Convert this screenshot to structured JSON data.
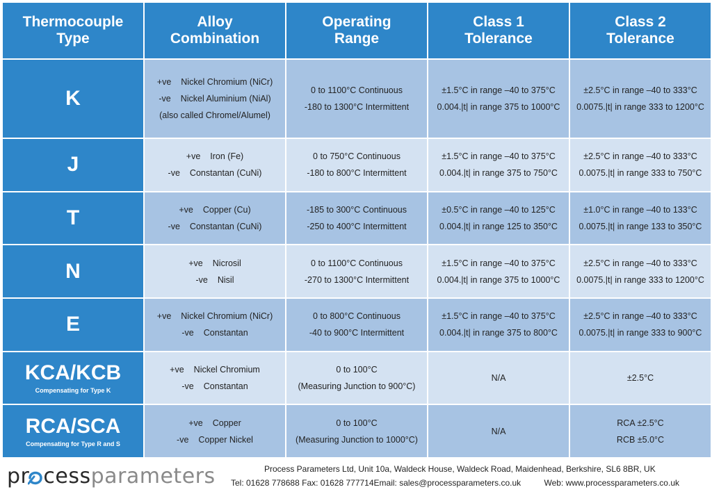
{
  "headers": [
    {
      "line1": "Thermocouple",
      "line2": "Type"
    },
    {
      "line1": "Alloy",
      "line2": "Combination"
    },
    {
      "line1": "Operating",
      "line2": "Range"
    },
    {
      "line1": "Class 1",
      "line2": "Tolerance"
    },
    {
      "line1": "Class 2",
      "line2": "Tolerance"
    }
  ],
  "rows": [
    {
      "type": "K",
      "sub": "",
      "alloy": [
        {
          "pol": "+ve",
          "name": "Nickel Chromium (NiCr)"
        },
        {
          "pol": "-ve",
          "name": "Nickel Aluminium (NiAl)"
        },
        {
          "pol": "",
          "name": "(also called Chromel/Alumel)"
        }
      ],
      "range": [
        "0 to 1100°C Continuous",
        "-180 to 1300°C Intermittent"
      ],
      "class1": [
        "±1.5°C in range –40 to 375°C",
        "0.004.|t| in range 375 to 1000°C"
      ],
      "class2": [
        "±2.5°C in range –40 to 333°C",
        "0.0075.|t| in range 333 to 1200°C"
      ]
    },
    {
      "type": "J",
      "sub": "",
      "alloy": [
        {
          "pol": "+ve",
          "name": "Iron (Fe)"
        },
        {
          "pol": "-ve",
          "name": "Constantan (CuNi)"
        },
        {
          "pol": "",
          "name": ""
        }
      ],
      "range": [
        "0 to 750°C Continuous",
        "-180 to 800°C Intermittent"
      ],
      "class1": [
        "±1.5°C in range –40 to 375°C",
        "0.004.|t| in range 375 to 750°C"
      ],
      "class2": [
        "±2.5°C in range –40 to 333°C",
        "0.0075.|t| in range 333 to 750°C"
      ]
    },
    {
      "type": "T",
      "sub": "",
      "alloy": [
        {
          "pol": "+ve",
          "name": "Copper (Cu)"
        },
        {
          "pol": "-ve",
          "name": "Constantan (CuNi)"
        },
        {
          "pol": "",
          "name": ""
        }
      ],
      "range": [
        "-185 to 300°C Continuous",
        "-250 to 400°C Intermittent"
      ],
      "class1": [
        "±0.5°C in range –40 to 125°C",
        "0.004.|t| in range 125 to 350°C"
      ],
      "class2": [
        "±1.0°C in range –40 to 133°C",
        "0.0075.|t| in range 133 to 350°C"
      ]
    },
    {
      "type": "N",
      "sub": "",
      "alloy": [
        {
          "pol": "+ve",
          "name": "Nicrosil"
        },
        {
          "pol": "-ve",
          "name": "Nisil"
        },
        {
          "pol": "",
          "name": ""
        }
      ],
      "range": [
        "0 to 1100°C Continuous",
        "-270 to 1300°C Intermittent"
      ],
      "class1": [
        "±1.5°C in range –40 to 375°C",
        "0.004.|t| in range 375 to 1000°C"
      ],
      "class2": [
        "±2.5°C in range –40 to 333°C",
        "0.0075.|t| in range 333 to 1200°C"
      ]
    },
    {
      "type": "E",
      "sub": "",
      "alloy": [
        {
          "pol": "+ve",
          "name": "Nickel Chromium (NiCr)"
        },
        {
          "pol": "-ve",
          "name": "Constantan"
        },
        {
          "pol": "",
          "name": ""
        }
      ],
      "range": [
        "0 to 800°C Continuous",
        "-40 to 900°C Intermittent"
      ],
      "class1": [
        "±1.5°C in range –40 to 375°C",
        "0.004.|t| in range 375 to 800°C"
      ],
      "class2": [
        "±2.5°C in range –40 to 333°C",
        "0.0075.|t| in range 333 to 900°C"
      ]
    },
    {
      "type": "KCA/KCB",
      "sub": "Compensating for Type K",
      "alloy": [
        {
          "pol": "+ve",
          "name": "Nickel Chromium"
        },
        {
          "pol": "-ve",
          "name": "Constantan"
        },
        {
          "pol": "",
          "name": ""
        }
      ],
      "range": [
        "0 to 100°C",
        "(Measuring Junction to 900°C)"
      ],
      "class1": [
        "N/A",
        ""
      ],
      "class2": [
        "±2.5°C",
        ""
      ]
    },
    {
      "type": "RCA/SCA",
      "sub": "Compensating for Type R and S",
      "alloy": [
        {
          "pol": "+ve",
          "name": "Copper"
        },
        {
          "pol": "-ve",
          "name": "Copper Nickel"
        },
        {
          "pol": "",
          "name": ""
        }
      ],
      "range": [
        "0 to 100°C",
        "(Measuring Junction to 1000°C)"
      ],
      "class1": [
        "N/A",
        ""
      ],
      "class2": [
        "RCA ±2.5°C",
        "RCB ±5.0°C"
      ]
    }
  ],
  "footer": {
    "logo_part1": "pr",
    "logo_part2": "cess",
    "logo_part3": "parameters",
    "address": "Process Parameters Ltd, Unit 10a, Waldeck House, Waldeck Road, Maidenhead, Berkshire, SL6 8BR, UK",
    "tel": "Tel: 01628 778688",
    "fax": "Fax: 01628 777714",
    "email": "Email: sales@processparameters.co.uk",
    "web": "Web: www.processparameters.co.uk"
  },
  "colors": {
    "header_blue": "#2e86c9",
    "row_dark": "#a7c3e3",
    "row_light": "#d4e2f2"
  }
}
